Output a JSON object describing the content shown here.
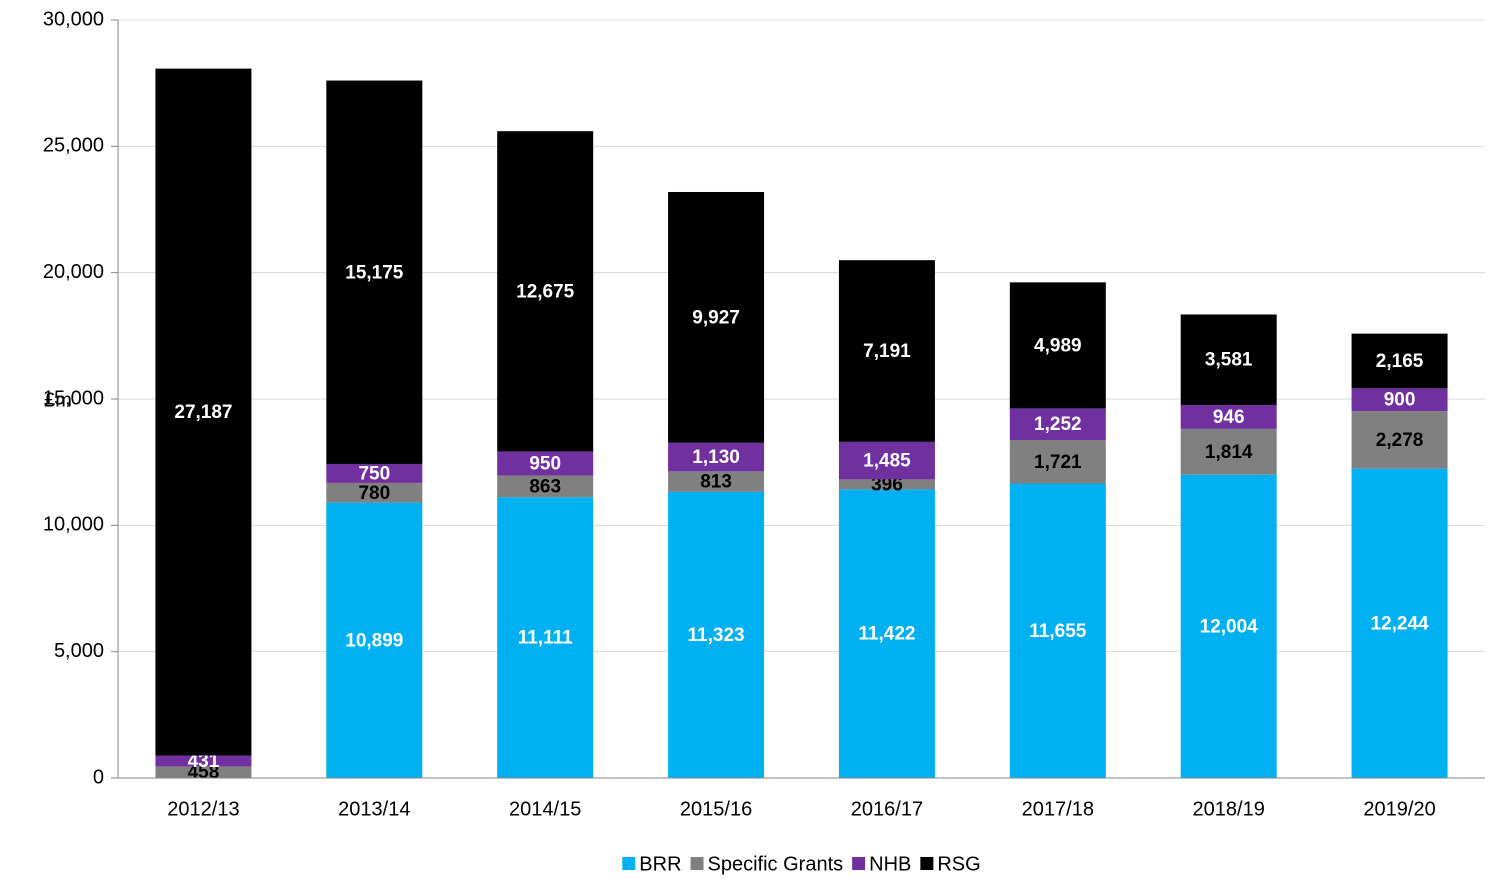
{
  "chart_data": {
    "type": "stacked_bar",
    "y_label": "£m",
    "categories": [
      "2012/13",
      "2013/14",
      "2014/15",
      "2015/16",
      "2016/17",
      "2017/18",
      "2018/19",
      "2019/20"
    ],
    "series": [
      {
        "name": "BRR",
        "color": "#00b0f0",
        "label_color": "#ffffff",
        "values": [
          null,
          10899,
          11111,
          11323,
          11422,
          11655,
          12004,
          12244
        ],
        "value_labels": [
          null,
          "10,899",
          "11,111",
          "11,323",
          "11,422",
          "11,655",
          "12,004",
          "12,244"
        ]
      },
      {
        "name": "Specific Grants",
        "color": "#808080",
        "label_color": "#000000",
        "values": [
          458,
          780,
          863,
          813,
          396,
          1721,
          1814,
          2278
        ],
        "value_labels": [
          "458",
          "780",
          "863",
          "813",
          "396",
          "1,721",
          "1,814",
          "2,278"
        ]
      },
      {
        "name": "NHB",
        "color": "#7030a0",
        "label_color": "#ffffff",
        "values": [
          431,
          750,
          950,
          1130,
          1485,
          1252,
          946,
          900
        ],
        "value_labels": [
          "431",
          "750",
          "950",
          "1,130",
          "1,485",
          "1,252",
          "946",
          "900"
        ]
      },
      {
        "name": "RSG",
        "color": "#000000",
        "label_color": "#ffffff",
        "values": [
          27187,
          15175,
          12675,
          9927,
          7191,
          4989,
          3581,
          2165
        ],
        "value_labels": [
          "27,187",
          "15,175",
          "12,675",
          "9,927",
          "7,191",
          "4,989",
          "3,581",
          "2,165"
        ]
      }
    ],
    "ylim": [
      0,
      30000
    ],
    "yticks": [
      0,
      {
        "value": 5000,
        "label": "5,000"
      },
      {
        "value": 10000,
        "label": "10,000"
      },
      {
        "value": 15000,
        "label": "15,000"
      },
      {
        "value": 20000,
        "label": "20,000"
      },
      {
        "value": 25000,
        "label": "25,000"
      },
      {
        "value": 30000,
        "label": "30,000"
      }
    ],
    "grid": true,
    "legend": "bottom"
  }
}
